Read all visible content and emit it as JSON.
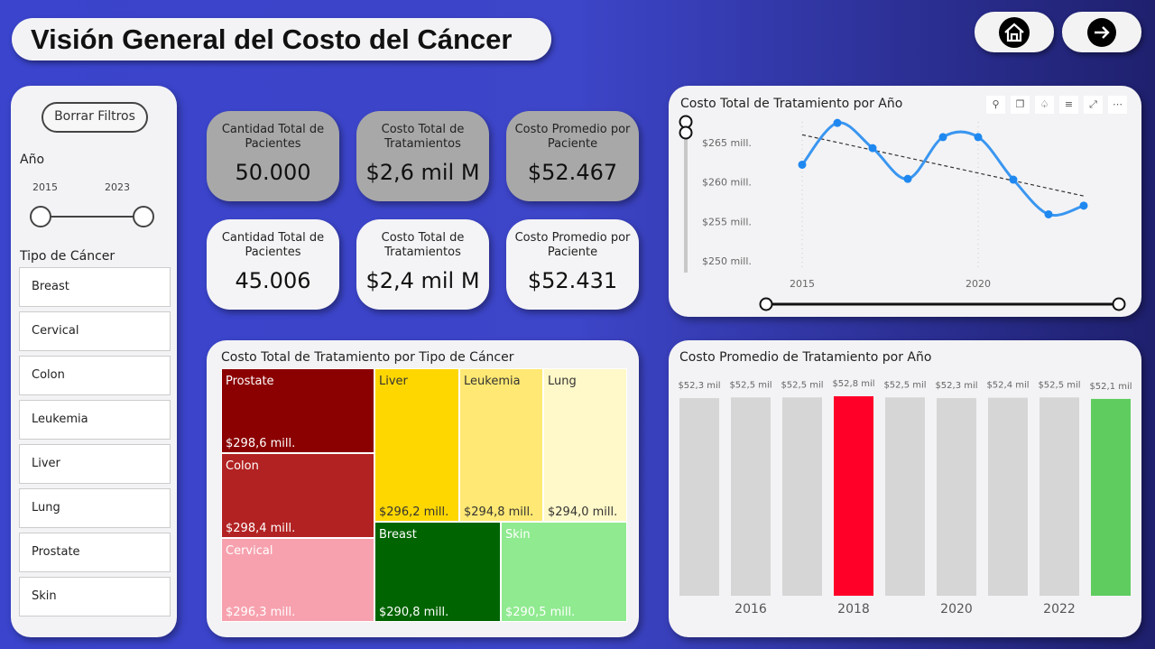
{
  "header": {
    "title": "Visión General del Costo del Cáncer",
    "home_icon": "home-icon",
    "next_icon": "arrow-right-icon"
  },
  "filters": {
    "clear_label": "Borrar Filtros",
    "year_label": "Año",
    "year_min": "2015",
    "year_max": "2023",
    "cancer_label": "Tipo de Cáncer",
    "cancer_types": [
      "Breast",
      "Cervical",
      "Colon",
      "Leukemia",
      "Liver",
      "Lung",
      "Prostate",
      "Skin"
    ]
  },
  "kpis_total": [
    {
      "title": "Cantidad Total de Pacientes",
      "value": "50.000"
    },
    {
      "title": "Costo Total de Tratamientos",
      "value": "$2,6 mil M"
    },
    {
      "title": "Costo Promedio por Paciente",
      "value": "$52.467"
    }
  ],
  "kpis_filtered": [
    {
      "title": "Cantidad Total de Pacientes",
      "value": "45.006"
    },
    {
      "title": "Costo Total de Tratamientos",
      "value": "$2,4 mil M"
    },
    {
      "title": "Costo Promedio por Paciente",
      "value": "$52.431"
    }
  ],
  "chart_data": [
    {
      "type": "treemap",
      "title": "Costo Total de Tratamiento por Tipo de Cáncer",
      "items": [
        {
          "name": "Prostate",
          "label": "$298,6 mill.",
          "value": 298.6,
          "color": "#8b0000"
        },
        {
          "name": "Colon",
          "label": "$298,4 mill.",
          "value": 298.4,
          "color": "#b22222"
        },
        {
          "name": "Cervical",
          "label": "$296,3 mill.",
          "value": 296.3,
          "color": "#f7a1ae"
        },
        {
          "name": "Liver",
          "label": "$296,2 mill.",
          "value": 296.2,
          "color": "#ffd700"
        },
        {
          "name": "Leukemia",
          "label": "$294,8 mill.",
          "value": 294.8,
          "color": "#ffe873"
        },
        {
          "name": "Lung",
          "label": "$294,0 mill.",
          "value": 294.0,
          "color": "#fff8c8"
        },
        {
          "name": "Breast",
          "label": "$290,8 mill.",
          "value": 290.8,
          "color": "#006400"
        },
        {
          "name": "Skin",
          "label": "$290,5 mill.",
          "value": 290.5,
          "color": "#90ea90"
        }
      ]
    },
    {
      "type": "line",
      "title": "Costo Total de Tratamiento por Año",
      "x": [
        2015,
        2016,
        2017,
        2018,
        2019,
        2020,
        2021,
        2022,
        2023
      ],
      "y": [
        262.2,
        267.5,
        264.3,
        260.4,
        265.7,
        265.7,
        260.3,
        255.9,
        257.0
      ],
      "ylim": [
        248,
        268
      ],
      "yticks": [
        250,
        255,
        260,
        265
      ],
      "ytick_labels": [
        "$250 mill.",
        "$255 mill.",
        "$260 mill.",
        "$265 mill."
      ],
      "xtick_labels": [
        "2015",
        "2020"
      ],
      "trendline": true,
      "color": "#3a96f0",
      "toolbar_icons": [
        "pin-icon",
        "copy-icon",
        "bell-icon",
        "filter-icon",
        "focus-mode-icon",
        "more-options-icon"
      ]
    },
    {
      "type": "bar",
      "title": "Costo Promedio de Tratamiento por Año",
      "categories": [
        "2015",
        "2016",
        "2017",
        "2018",
        "2019",
        "2020",
        "2021",
        "2022",
        "2023"
      ],
      "values": [
        52.3,
        52.5,
        52.5,
        52.8,
        52.5,
        52.3,
        52.4,
        52.5,
        52.1
      ],
      "labels": [
        "$52,3 mil",
        "$52,5 mil",
        "$52,5 mil",
        "$52,8 mil",
        "$52,5 mil",
        "$52,3 mil",
        "$52,4 mil",
        "$52,5 mil",
        "$52,1 mil"
      ],
      "xtick_labels": [
        "2016",
        "2018",
        "2020",
        "2022"
      ],
      "colors": {
        "default": "#d6d6d6",
        "max": "#ff0028",
        "min": "#5fcc5f"
      }
    }
  ]
}
